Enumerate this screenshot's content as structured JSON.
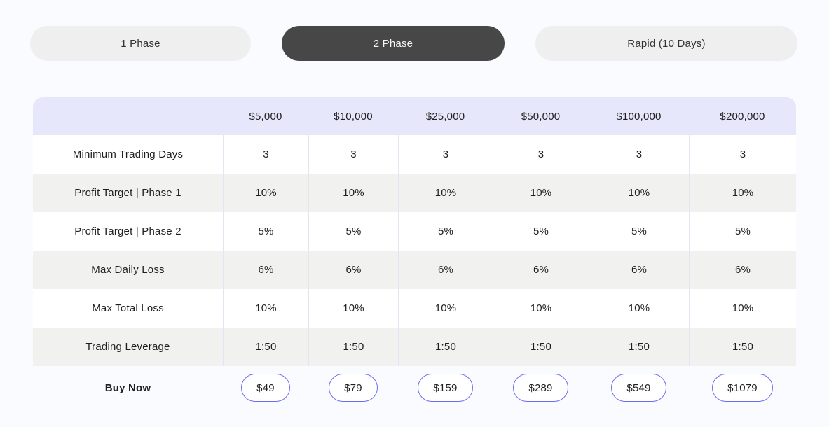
{
  "colors": {
    "page_background": "#fafbff",
    "tab_inactive_bg": "#efefef",
    "tab_active_bg": "#474747",
    "tab_active_text": "#f5f5f5",
    "header_bg": "#e6e7fb",
    "row_alt_bg": "#f1f2f0",
    "cell_border": "#e3e5f0",
    "buy_button_border": "#6b6cf3",
    "text": "#1f1f1f"
  },
  "tabs": [
    {
      "label": "1 Phase",
      "active": false
    },
    {
      "label": "2 Phase",
      "active": true
    },
    {
      "label": "Rapid (10 Days)",
      "active": false
    }
  ],
  "table": {
    "columns": [
      "$5,000",
      "$10,000",
      "$25,000",
      "$50,000",
      "$100,000",
      "$200,000"
    ],
    "rows": [
      {
        "label": "Minimum Trading Days",
        "values": [
          "3",
          "3",
          "3",
          "3",
          "3",
          "3"
        ]
      },
      {
        "label": "Profit Target | Phase 1",
        "values": [
          "10%",
          "10%",
          "10%",
          "10%",
          "10%",
          "10%"
        ]
      },
      {
        "label": "Profit Target | Phase 2",
        "values": [
          "5%",
          "5%",
          "5%",
          "5%",
          "5%",
          "5%"
        ]
      },
      {
        "label": "Max Daily Loss",
        "values": [
          "6%",
          "6%",
          "6%",
          "6%",
          "6%",
          "6%"
        ]
      },
      {
        "label": "Max Total Loss",
        "values": [
          "10%",
          "10%",
          "10%",
          "10%",
          "10%",
          "10%"
        ]
      },
      {
        "label": "Trading Leverage",
        "values": [
          "1:50",
          "1:50",
          "1:50",
          "1:50",
          "1:50",
          "1:50"
        ]
      }
    ],
    "buy_row": {
      "label": "Buy Now",
      "prices": [
        "$49",
        "$79",
        "$159",
        "$289",
        "$549",
        "$1079"
      ]
    }
  }
}
